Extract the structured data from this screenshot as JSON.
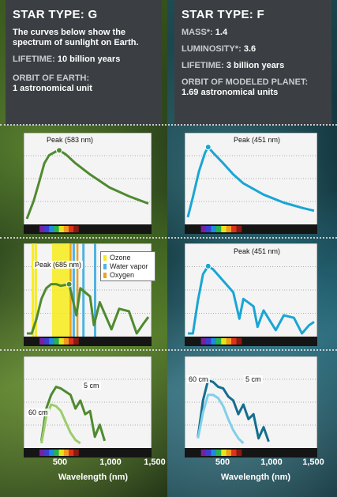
{
  "left_header": {
    "star_type_label": "STAR TYPE:",
    "star_type_value": "G",
    "desc_line1": "The curves below show the",
    "desc_line2": "spectrum of sunlight on Earth.",
    "lifetime_label": "LIFETIME:",
    "lifetime_value": "10 billion years",
    "orbit_label": "ORBIT OF EARTH:",
    "orbit_value": "1 astronomical unit"
  },
  "right_header": {
    "star_type_label": "STAR TYPE:",
    "star_type_value": "F",
    "mass_label": "MASS*:",
    "mass_value": "1.4",
    "luminosity_label": "LUMINOSITY*:",
    "luminosity_value": "3.6",
    "lifetime_label": "LIFETIME:",
    "lifetime_value": "3 billion years",
    "orbit_label": "ORBIT OF MODELED PLANET:",
    "orbit_value": "1.69 astronomical units"
  },
  "legend": {
    "items": [
      {
        "label": "Ozone",
        "color": "#f5e81c"
      },
      {
        "label": "Water vapor",
        "color": "#4fb3e0"
      },
      {
        "label": "Oxygen",
        "color": "#f0a21a"
      }
    ]
  },
  "colors": {
    "g_star": "#4f8a2f",
    "g_star_light": "#9ccc6b",
    "f_star": "#1aa5d4",
    "f_star_dark": "#146e8f",
    "f_star_light": "#7fd0ea",
    "panel_bg": "#f4f4f4",
    "grid": "#666666"
  },
  "chart_data": [
    {
      "type": "line",
      "panel": "G-top",
      "series": [
        {
          "x": [
            250,
            320,
            380,
            430,
            480,
            540,
            583,
            650,
            750,
            900,
            1100,
            1300,
            1500
          ],
          "values": [
            0.03,
            0.25,
            0.5,
            0.72,
            0.82,
            0.86,
            0.88,
            0.83,
            0.72,
            0.58,
            0.42,
            0.31,
            0.22
          ]
        }
      ],
      "annotations": [
        {
          "text": "Peak (583 nm)",
          "x": 583
        }
      ],
      "xlim": [
        250,
        1500
      ]
    },
    {
      "type": "line",
      "panel": "F-top",
      "series": [
        {
          "x": [
            250,
            300,
            360,
            420,
            451,
            500,
            600,
            700,
            800,
            1000,
            1200,
            1400,
            1500
          ],
          "values": [
            0.05,
            0.3,
            0.62,
            0.85,
            0.92,
            0.85,
            0.72,
            0.58,
            0.47,
            0.33,
            0.23,
            0.16,
            0.13
          ]
        }
      ],
      "annotations": [
        {
          "text": "Peak (451 nm)",
          "x": 451
        }
      ],
      "xlim": [
        250,
        1500
      ]
    },
    {
      "type": "line",
      "panel": "G-middle",
      "series": [
        {
          "x": [
            250,
            300,
            350,
            400,
            450,
            500,
            550,
            600,
            685,
            760,
            800,
            900,
            940,
            1000,
            1120,
            1200,
            1300,
            1380,
            1450,
            1500
          ],
          "values": [
            0.0,
            0.0,
            0.18,
            0.42,
            0.55,
            0.6,
            0.6,
            0.58,
            0.6,
            0.22,
            0.55,
            0.45,
            0.1,
            0.38,
            0.05,
            0.3,
            0.27,
            0.0,
            0.12,
            0.2
          ]
        }
      ],
      "annotations": [
        {
          "text": "Peak (685 nm)",
          "x": 685
        }
      ],
      "xlim": [
        250,
        1500
      ]
    },
    {
      "type": "line",
      "panel": "F-middle",
      "series": [
        {
          "x": [
            250,
            300,
            350,
            400,
            451,
            500,
            600,
            700,
            760,
            800,
            900,
            940,
            1000,
            1120,
            1200,
            1300,
            1380,
            1450,
            1500
          ],
          "values": [
            0.0,
            0.0,
            0.4,
            0.72,
            0.82,
            0.78,
            0.64,
            0.5,
            0.18,
            0.42,
            0.33,
            0.08,
            0.28,
            0.04,
            0.22,
            0.19,
            0.0,
            0.1,
            0.14
          ]
        }
      ],
      "annotations": [
        {
          "text": "Peak (451 nm)",
          "x": 451
        }
      ],
      "xlim": [
        250,
        1500
      ]
    },
    {
      "type": "line",
      "panel": "G-bottom",
      "series": [
        {
          "name": "5 cm",
          "x": [
            400,
            450,
            500,
            550,
            600,
            650,
            700,
            750,
            800,
            850,
            900,
            950,
            1000,
            1050
          ],
          "values": [
            0.05,
            0.45,
            0.62,
            0.72,
            0.7,
            0.66,
            0.62,
            0.45,
            0.55,
            0.38,
            0.42,
            0.1,
            0.25,
            0.05
          ]
        },
        {
          "name": "60 cm",
          "x": [
            400,
            450,
            500,
            550,
            600,
            650,
            700,
            750,
            800
          ],
          "values": [
            0.02,
            0.35,
            0.5,
            0.48,
            0.42,
            0.28,
            0.15,
            0.06,
            0.02
          ]
        }
      ],
      "xlabel": "Wavelength (nm)",
      "xticks": [
        "500",
        "1,000",
        "1,500"
      ],
      "xlim": [
        250,
        1500
      ]
    },
    {
      "type": "line",
      "panel": "F-bottom",
      "series": [
        {
          "name": "5 cm",
          "x": [
            350,
            400,
            450,
            500,
            550,
            600,
            650,
            700,
            750,
            800,
            850,
            900,
            950,
            1000,
            1050
          ],
          "values": [
            0.1,
            0.55,
            0.8,
            0.78,
            0.72,
            0.7,
            0.6,
            0.55,
            0.38,
            0.5,
            0.32,
            0.38,
            0.08,
            0.22,
            0.04
          ]
        },
        {
          "name": "60 cm",
          "x": [
            350,
            400,
            450,
            500,
            550,
            600,
            650,
            700,
            750,
            800
          ],
          "values": [
            0.08,
            0.4,
            0.62,
            0.62,
            0.58,
            0.48,
            0.32,
            0.18,
            0.08,
            0.02
          ]
        }
      ],
      "xlabel": "Wavelength (nm)",
      "xticks": [
        "500",
        "1,000",
        "1,500"
      ],
      "xlim": [
        250,
        1500
      ]
    }
  ]
}
